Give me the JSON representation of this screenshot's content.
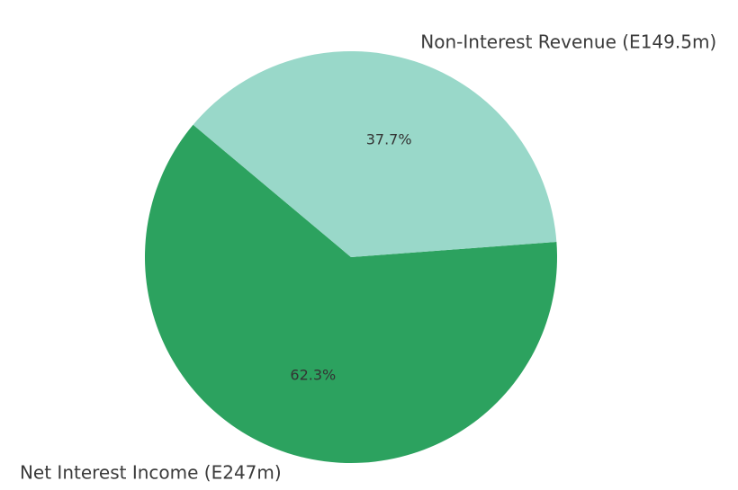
{
  "chart_data": {
    "type": "pie",
    "title": "",
    "start_angle_deg": 140,
    "direction": "counterclockwise",
    "slices": [
      {
        "label": "Net Interest Income (E247m)",
        "value": 247,
        "percent_label": "62.3%",
        "color": "#2ca25f"
      },
      {
        "label": "Non-Interest Revenue (E149.5m)",
        "value": 149.5,
        "percent_label": "37.7%",
        "color": "#99d8c9"
      }
    ]
  }
}
